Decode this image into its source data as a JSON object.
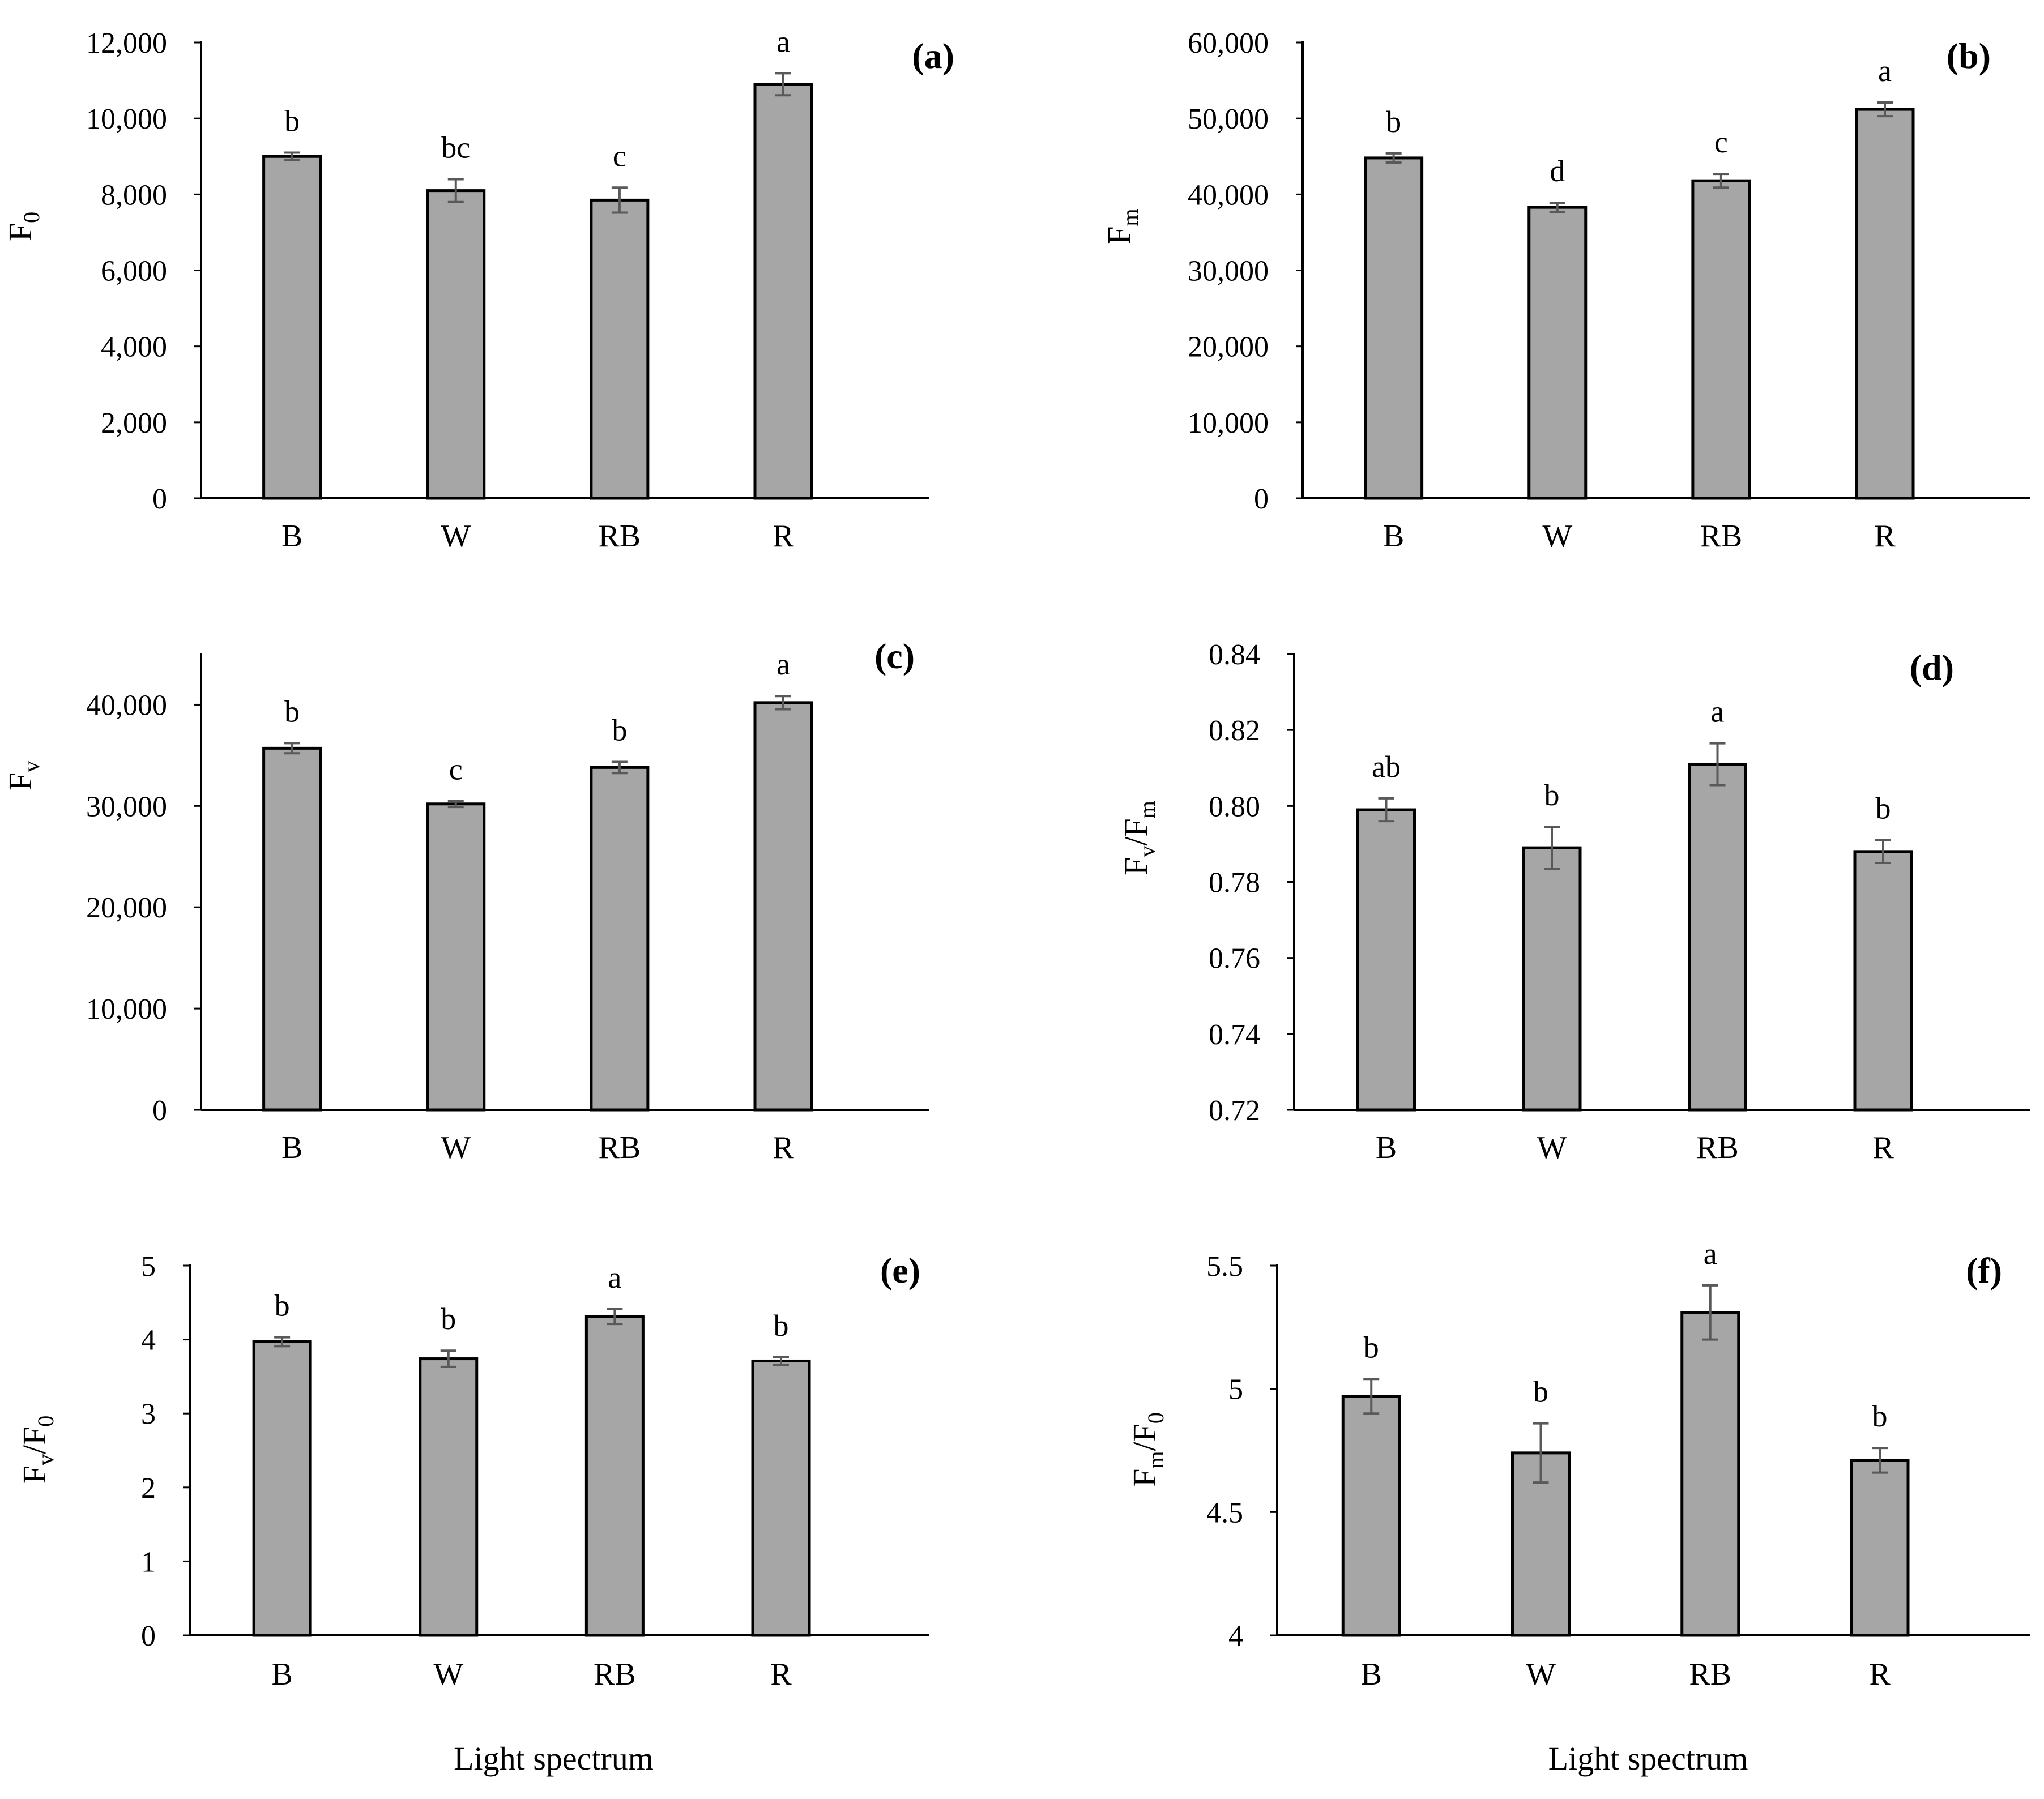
{
  "chart_data": [
    {
      "id": "a",
      "type": "bar",
      "panel_label_prefix": "(",
      "panel_label": "a",
      "panel_label_suffix": ")",
      "ylabel": {
        "main": "F",
        "sub": "0"
      },
      "categories": [
        "B",
        "W",
        "RB",
        "R"
      ],
      "values": [
        9000,
        8100,
        7850,
        10900
      ],
      "errors": [
        100,
        300,
        330,
        290
      ],
      "significance": [
        "b",
        "bc",
        "c",
        "a"
      ],
      "ylim": [
        0,
        12000
      ],
      "yticks": [
        0,
        2000,
        4000,
        6000,
        8000,
        10000,
        12000
      ],
      "ytick_labels": [
        "0",
        "2,000",
        "4,000",
        "6,000",
        "8,000",
        "10,000",
        "12,000"
      ],
      "xlabel": "",
      "bar_color": "#a6a6a6"
    },
    {
      "id": "b",
      "type": "bar",
      "panel_label_prefix": "(",
      "panel_label": "b",
      "panel_label_suffix": ")",
      "ylabel": {
        "main": "F",
        "sub": "m"
      },
      "categories": [
        "B",
        "W",
        "RB",
        "R"
      ],
      "values": [
        44800,
        38300,
        41800,
        51200
      ],
      "errors": [
        600,
        600,
        900,
        900
      ],
      "significance": [
        "b",
        "d",
        "c",
        "a"
      ],
      "ylim": [
        0,
        60000
      ],
      "yticks": [
        0,
        10000,
        20000,
        30000,
        40000,
        50000,
        60000
      ],
      "ytick_labels": [
        "0",
        "10,000",
        "20,000",
        "30,000",
        "40,000",
        "50,000",
        "60,000"
      ],
      "xlabel": "",
      "bar_color": "#a6a6a6"
    },
    {
      "id": "c",
      "type": "bar",
      "panel_label_prefix": "(",
      "panel_label": "c",
      "panel_label_suffix": ")",
      "ylabel": {
        "main": "F",
        "sub": "v"
      },
      "categories": [
        "B",
        "W",
        "RB",
        "R"
      ],
      "values": [
        35700,
        30200,
        33800,
        40200
      ],
      "errors": [
        500,
        300,
        550,
        650
      ],
      "significance": [
        "b",
        "c",
        "b",
        "a"
      ],
      "ylim": [
        0,
        45000
      ],
      "yticks": [
        0,
        10000,
        20000,
        30000,
        40000
      ],
      "ytick_labels": [
        "0",
        "10,000",
        "20,000",
        "30,000",
        "40,000"
      ],
      "xlabel": "",
      "bar_color": "#a6a6a6"
    },
    {
      "id": "d",
      "type": "bar",
      "panel_label_prefix": "(",
      "panel_label": "d",
      "panel_label_suffix": ")",
      "ylabel": {
        "main": "F",
        "sub": "v",
        "mid": "/F",
        "sub2": "m"
      },
      "categories": [
        "B",
        "W",
        "RB",
        "R"
      ],
      "values": [
        0.799,
        0.789,
        0.811,
        0.788
      ],
      "errors": [
        0.003,
        0.0055,
        0.0055,
        0.003
      ],
      "significance": [
        "ab",
        "b",
        "a",
        "b"
      ],
      "ylim": [
        0.72,
        0.84
      ],
      "yticks": [
        0.72,
        0.74,
        0.76,
        0.78,
        0.8,
        0.82,
        0.84
      ],
      "ytick_labels": [
        "0.72",
        "0.74",
        "0.76",
        "0.78",
        "0.80",
        "0.82",
        "0.84"
      ],
      "xlabel": "",
      "bar_color": "#a6a6a6"
    },
    {
      "id": "e",
      "type": "bar",
      "panel_label_prefix": "(",
      "panel_label": "e",
      "panel_label_suffix": ")",
      "ylabel": {
        "main": "F",
        "sub": "v",
        "mid": "/F",
        "sub2": "0"
      },
      "categories": [
        "B",
        "W",
        "RB",
        "R"
      ],
      "values": [
        3.97,
        3.74,
        4.31,
        3.71
      ],
      "errors": [
        0.06,
        0.11,
        0.1,
        0.05
      ],
      "significance": [
        "b",
        "b",
        "a",
        "b"
      ],
      "ylim": [
        0,
        5
      ],
      "yticks": [
        0,
        1,
        2,
        3,
        4,
        5
      ],
      "ytick_labels": [
        "0",
        "1",
        "2",
        "3",
        "4",
        "5"
      ],
      "xlabel": "Light spectrum",
      "bar_color": "#a6a6a6"
    },
    {
      "id": "f",
      "type": "bar",
      "panel_label_prefix": "(",
      "panel_label": "f",
      "panel_label_suffix": ")",
      "ylabel": {
        "main": "F",
        "sub": "m",
        "mid": "/F",
        "sub2": "0"
      },
      "categories": [
        "B",
        "W",
        "RB",
        "R"
      ],
      "values": [
        4.97,
        4.74,
        5.31,
        4.71
      ],
      "errors": [
        0.07,
        0.12,
        0.11,
        0.05
      ],
      "significance": [
        "b",
        "b",
        "a",
        "b"
      ],
      "ylim": [
        4,
        5.5
      ],
      "yticks": [
        4,
        4.5,
        5,
        5.5
      ],
      "ytick_labels": [
        "4",
        "4.5",
        "5",
        "5.5"
      ],
      "xlabel": "Light spectrum",
      "bar_color": "#a6a6a6"
    }
  ]
}
